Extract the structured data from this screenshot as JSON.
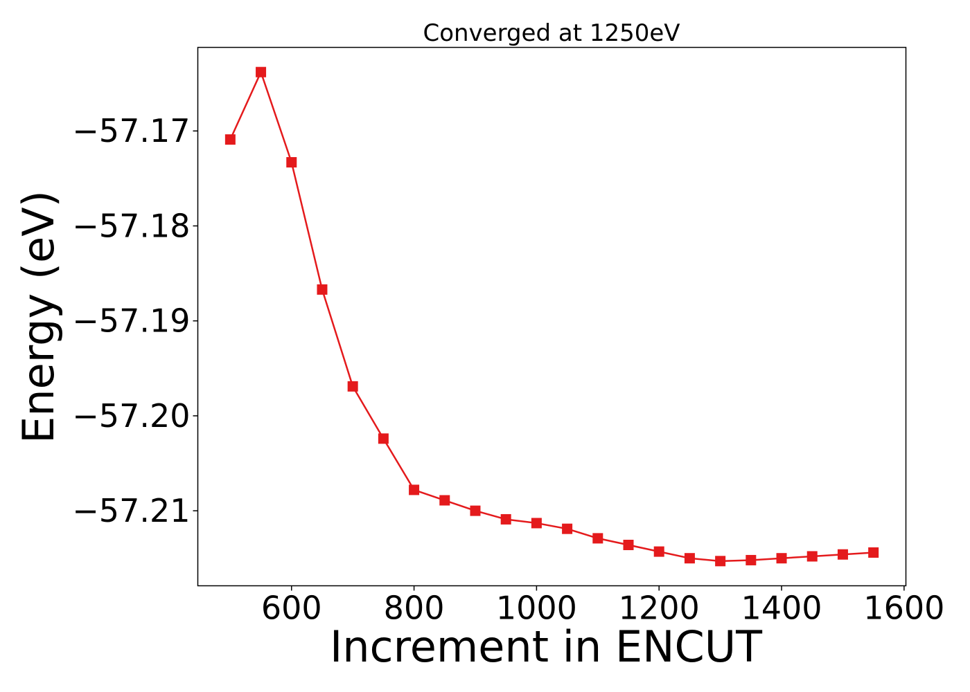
{
  "chart_data": {
    "type": "line",
    "title": "Converged at 1250eV",
    "xlabel": "Increment in ENCUT",
    "ylabel": "Energy (eV)",
    "x": [
      500,
      550,
      600,
      650,
      700,
      750,
      800,
      850,
      900,
      950,
      1000,
      1050,
      1100,
      1150,
      1200,
      1250,
      1300,
      1350,
      1400,
      1450,
      1500,
      1550
    ],
    "series": [
      {
        "values": [
          -57.1709,
          -57.1638,
          -57.1733,
          -57.1867,
          -57.1969,
          -57.2024,
          -57.2078,
          -57.2089,
          -57.21,
          -57.2109,
          -57.2113,
          -57.2119,
          -57.2129,
          -57.2136,
          -57.2143,
          -57.215,
          -57.2153,
          -57.2152,
          -57.215,
          -57.2148,
          -57.2146,
          -57.2144
        ],
        "color": "#e41a1c",
        "marker": "square"
      }
    ],
    "xlim": [
      447,
      1603
    ],
    "ylim": [
      -57.2179,
      -57.1612
    ],
    "xticks": [
      600,
      800,
      1000,
      1200,
      1400,
      1600
    ],
    "xtick_labels": [
      "600",
      "800",
      "1000",
      "1200",
      "1400",
      "1600"
    ],
    "yticks": [
      -57.17,
      -57.18,
      -57.19,
      -57.2,
      -57.21
    ],
    "ytick_labels": [
      "−57.17",
      "−57.18",
      "−57.19",
      "−57.20",
      "−57.21"
    ],
    "grid": false,
    "legend": "none"
  }
}
